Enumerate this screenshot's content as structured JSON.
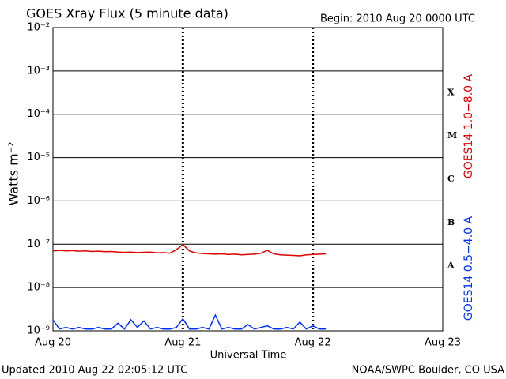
{
  "chart_data": {
    "type": "line",
    "title": "GOES Xray Flux (5 minute data)",
    "subtitle": "Begin:  2010 Aug 20 0000 UTC",
    "xlabel": "Universal Time",
    "ylabel": "Watts m⁻²",
    "footer_left": "Updated 2010 Aug 22 02:05:12 UTC",
    "footer_right": "NOAA/SWPC Boulder, CO USA",
    "log_y": true,
    "grid": true,
    "ylim": [
      1e-09,
      0.01
    ],
    "yticks": [
      {
        "value": 0.01,
        "label": "10⁻²"
      },
      {
        "value": 0.001,
        "label": "10⁻³"
      },
      {
        "value": 0.0001,
        "label": "10⁻⁴"
      },
      {
        "value": 1e-05,
        "label": "10⁻⁵"
      },
      {
        "value": 1e-06,
        "label": "10⁻⁶"
      },
      {
        "value": 1e-07,
        "label": "10⁻⁷"
      },
      {
        "value": 1e-08,
        "label": "10⁻⁸"
      },
      {
        "value": 1e-09,
        "label": "10⁻⁹"
      }
    ],
    "xlim": [
      0,
      3
    ],
    "xticks": [
      {
        "value": 0,
        "label": "Aug 20"
      },
      {
        "value": 1,
        "label": "Aug 21"
      },
      {
        "value": 2,
        "label": "Aug 22"
      },
      {
        "value": 3,
        "label": "Aug 23"
      }
    ],
    "flare_classes": [
      "X",
      "M",
      "C",
      "B",
      "A"
    ],
    "x": [
      0,
      0.05,
      0.1,
      0.15,
      0.2,
      0.25,
      0.3,
      0.35,
      0.4,
      0.45,
      0.5,
      0.55,
      0.6,
      0.65,
      0.7,
      0.75,
      0.8,
      0.85,
      0.9,
      0.95,
      1.0,
      1.05,
      1.1,
      1.15,
      1.2,
      1.25,
      1.3,
      1.35,
      1.4,
      1.45,
      1.5,
      1.55,
      1.6,
      1.65,
      1.7,
      1.75,
      1.8,
      1.85,
      1.9,
      1.95,
      2.0,
      2.05,
      2.1
    ],
    "series": [
      {
        "name": "GOES14 1.0−8.0 A",
        "color": "#e00000",
        "values": [
          7e-08,
          7.2e-08,
          7e-08,
          7.1e-08,
          6.9e-08,
          7e-08,
          6.8e-08,
          6.9e-08,
          6.7e-08,
          6.8e-08,
          6.6e-08,
          6.5e-08,
          6.6e-08,
          6.4e-08,
          6.5e-08,
          6.6e-08,
          6.3e-08,
          6.4e-08,
          6.2e-08,
          7.5e-08,
          9.8e-08,
          7e-08,
          6.3e-08,
          6.1e-08,
          6e-08,
          5.9e-08,
          6e-08,
          5.8e-08,
          5.9e-08,
          5.7e-08,
          5.8e-08,
          5.9e-08,
          6.2e-08,
          7.2e-08,
          6e-08,
          5.7e-08,
          5.6e-08,
          5.5e-08,
          5.4e-08,
          5.7e-08,
          5.8e-08,
          5.9e-08,
          6e-08
        ]
      },
      {
        "name": "GOES14 0.5−4.0 A",
        "color": "#0030ff",
        "values": [
          1.8e-09,
          1.1e-09,
          1.2e-09,
          1.1e-09,
          1.2e-09,
          1.1e-09,
          1.1e-09,
          1.2e-09,
          1.1e-09,
          1.1e-09,
          1.5e-09,
          1.1e-09,
          1.8e-09,
          1.2e-09,
          1.7e-09,
          1.1e-09,
          1.2e-09,
          1.1e-09,
          1.1e-09,
          1.2e-09,
          1.9e-09,
          1.1e-09,
          1.1e-09,
          1.2e-09,
          1.1e-09,
          2.3e-09,
          1.1e-09,
          1.2e-09,
          1.1e-09,
          1.1e-09,
          1.4e-09,
          1.1e-09,
          1.2e-09,
          1.3e-09,
          1.1e-09,
          1.1e-09,
          1.2e-09,
          1.1e-09,
          1.6e-09,
          1.1e-09,
          1.3e-09,
          1.1e-09,
          1.1e-09
        ]
      }
    ]
  }
}
